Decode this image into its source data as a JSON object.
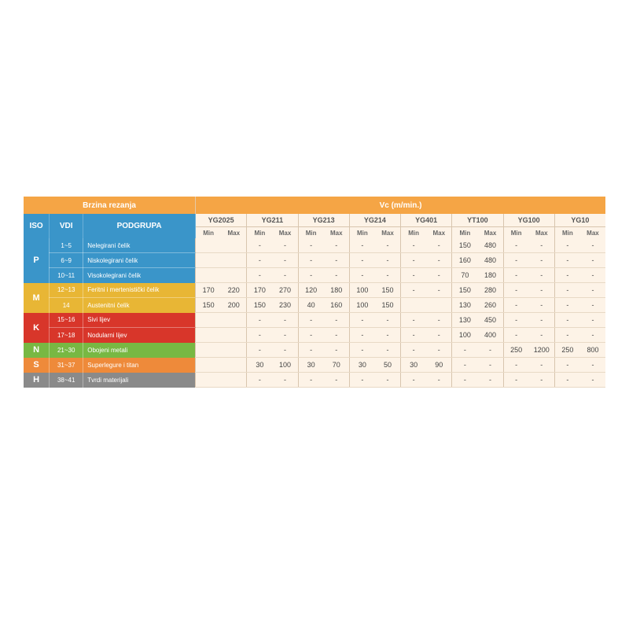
{
  "titles": {
    "left": "Brzina rezanja",
    "right": "Vc (m/min.)"
  },
  "headers": {
    "iso": "ISO",
    "vdi": "VDI",
    "podgrupa": "PODGRUPA",
    "min": "Min",
    "max": "Max"
  },
  "grades": [
    "YG2025",
    "YG211",
    "YG213",
    "YG214",
    "YG401",
    "YT100",
    "YG100",
    "YG10"
  ],
  "colors": {
    "header_bg": "#f5a545",
    "blue": "#3a95c9",
    "yellow": "#e8b635",
    "red": "#d8362a",
    "green": "#78b843",
    "orange": "#ee8a3a",
    "gray": "#8a8a8a",
    "cell_bg": "#fdf3e7",
    "cell_border": "#d8c5ae"
  },
  "groups": [
    {
      "iso": "P",
      "color": "#3a95c9",
      "rows": [
        {
          "vdi": "1~5",
          "sub": "Nelegirani čelik",
          "vals": [
            [
              "",
              ""
            ],
            [
              "-",
              "-"
            ],
            [
              "-",
              "-"
            ],
            [
              "-",
              "-"
            ],
            [
              "-",
              "-"
            ],
            [
              "150",
              "480"
            ],
            [
              "-",
              "-"
            ],
            [
              "-",
              "-"
            ]
          ]
        },
        {
          "vdi": "6~9",
          "sub": "Niskolegirani čelik",
          "vals": [
            [
              "",
              ""
            ],
            [
              "-",
              "-"
            ],
            [
              "-",
              "-"
            ],
            [
              "-",
              "-"
            ],
            [
              "-",
              "-"
            ],
            [
              "160",
              "480"
            ],
            [
              "-",
              "-"
            ],
            [
              "-",
              "-"
            ]
          ]
        },
        {
          "vdi": "10~11",
          "sub": "Visokolegirani čelik",
          "vals": [
            [
              "",
              ""
            ],
            [
              "-",
              "-"
            ],
            [
              "-",
              "-"
            ],
            [
              "-",
              "-"
            ],
            [
              "-",
              "-"
            ],
            [
              "70",
              "180"
            ],
            [
              "-",
              "-"
            ],
            [
              "-",
              "-"
            ]
          ]
        }
      ]
    },
    {
      "iso": "M",
      "color": "#e8b635",
      "rows": [
        {
          "vdi": "12~13",
          "sub": "Feritni i mertenistički čelik",
          "vals": [
            [
              "170",
              "220"
            ],
            [
              "170",
              "270"
            ],
            [
              "120",
              "180"
            ],
            [
              "100",
              "150"
            ],
            [
              "-",
              "-"
            ],
            [
              "150",
              "280"
            ],
            [
              "-",
              "-"
            ],
            [
              "-",
              "-"
            ]
          ]
        },
        {
          "vdi": "14",
          "sub": "Austenitni čelik",
          "vals": [
            [
              "150",
              "200"
            ],
            [
              "150",
              "230"
            ],
            [
              "40",
              "160"
            ],
            [
              "100",
              "150"
            ],
            [
              "",
              ""
            ],
            [
              "130",
              "260"
            ],
            [
              "-",
              "-"
            ],
            [
              "-",
              "-"
            ]
          ]
        }
      ]
    },
    {
      "iso": "K",
      "color": "#d8362a",
      "rows": [
        {
          "vdi": "15~16",
          "sub": "Sivi lijev",
          "vals": [
            [
              "",
              ""
            ],
            [
              "-",
              "-"
            ],
            [
              "-",
              "-"
            ],
            [
              "-",
              "-"
            ],
            [
              "-",
              "-"
            ],
            [
              "130",
              "450"
            ],
            [
              "-",
              "-"
            ],
            [
              "-",
              "-"
            ]
          ]
        },
        {
          "vdi": "17~18",
          "sub": "Nodularni lijev",
          "vals": [
            [
              "",
              ""
            ],
            [
              "-",
              "-"
            ],
            [
              "-",
              "-"
            ],
            [
              "-",
              "-"
            ],
            [
              "-",
              "-"
            ],
            [
              "100",
              "400"
            ],
            [
              "-",
              "-"
            ],
            [
              "-",
              "-"
            ]
          ]
        }
      ]
    },
    {
      "iso": "N",
      "color": "#78b843",
      "rows": [
        {
          "vdi": "21~30",
          "sub": "Obojeni metali",
          "vals": [
            [
              "",
              ""
            ],
            [
              "-",
              "-"
            ],
            [
              "-",
              "-"
            ],
            [
              "-",
              "-"
            ],
            [
              "-",
              "-"
            ],
            [
              "-",
              "-"
            ],
            [
              "250",
              "1200"
            ],
            [
              "250",
              "800"
            ]
          ]
        }
      ]
    },
    {
      "iso": "S",
      "color": "#ee8a3a",
      "rows": [
        {
          "vdi": "31~37",
          "sub": "Superlegure i titan",
          "vals": [
            [
              "",
              ""
            ],
            [
              "30",
              "100"
            ],
            [
              "30",
              "70"
            ],
            [
              "30",
              "50"
            ],
            [
              "30",
              "90"
            ],
            [
              "-",
              "-"
            ],
            [
              "-",
              "-"
            ],
            [
              "-",
              "-"
            ]
          ]
        }
      ]
    },
    {
      "iso": "H",
      "color": "#8a8a8a",
      "rows": [
        {
          "vdi": "38~41",
          "sub": "Tvrdi materijali",
          "vals": [
            [
              "",
              ""
            ],
            [
              "-",
              "-"
            ],
            [
              "-",
              "-"
            ],
            [
              "-",
              "-"
            ],
            [
              "-",
              "-"
            ],
            [
              "-",
              "-"
            ],
            [
              "-",
              "-"
            ],
            [
              "-",
              "-"
            ]
          ]
        }
      ]
    }
  ]
}
